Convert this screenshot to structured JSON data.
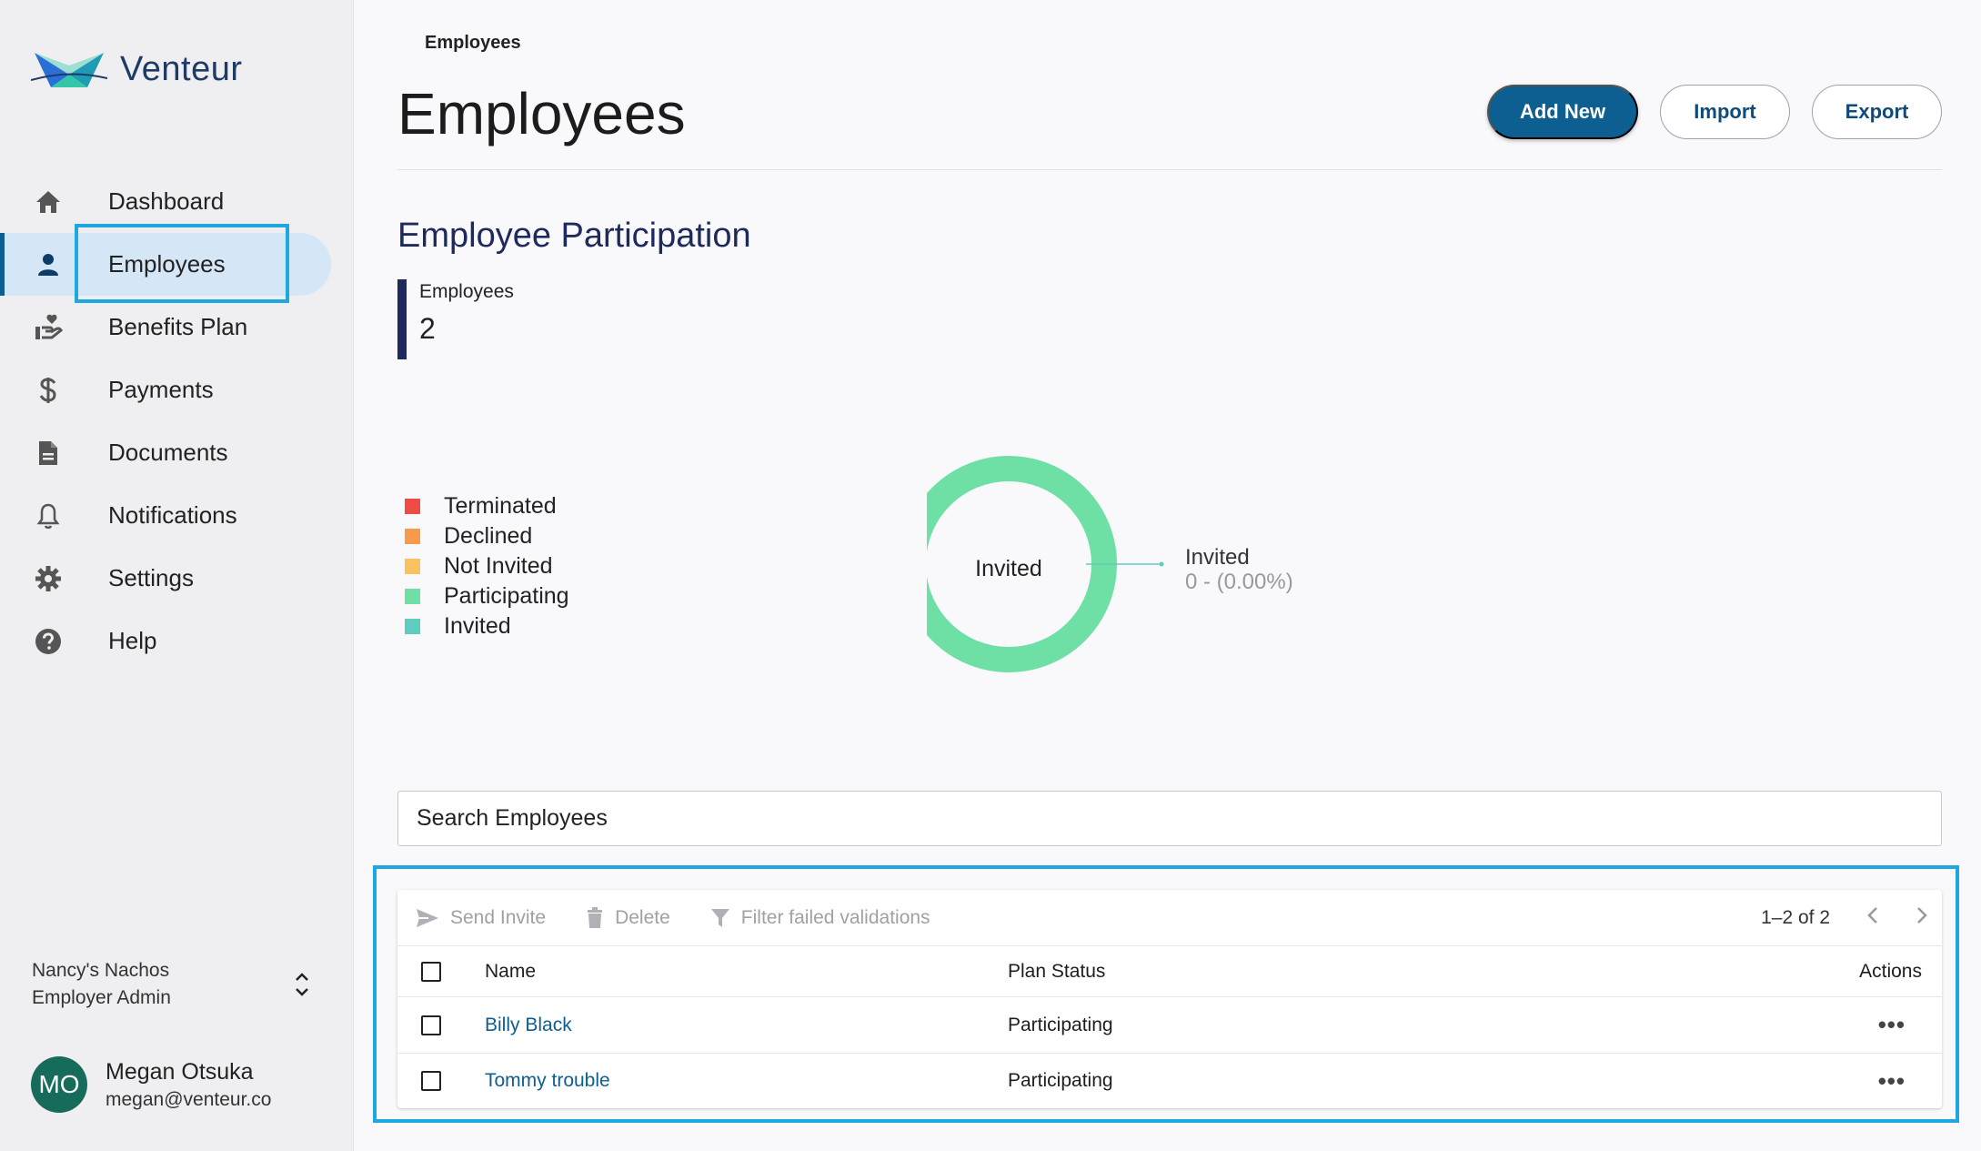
{
  "brand": {
    "name": "Venteur"
  },
  "sidebar": {
    "items": [
      {
        "label": "Dashboard"
      },
      {
        "label": "Employees"
      },
      {
        "label": "Benefits Plan"
      },
      {
        "label": "Payments"
      },
      {
        "label": "Documents"
      },
      {
        "label": "Notifications"
      },
      {
        "label": "Settings"
      },
      {
        "label": "Help"
      }
    ],
    "active_index": 1,
    "org": {
      "name": "Nancy's Nachos",
      "role": "Employer Admin"
    },
    "user": {
      "initials": "MO",
      "name": "Megan Otsuka",
      "email": "megan@venteur.co"
    }
  },
  "header": {
    "breadcrumb": "Employees",
    "title": "Employees",
    "add_new_label": "Add New",
    "import_label": "Import",
    "export_label": "Export"
  },
  "participation": {
    "title": "Employee Participation",
    "stat_label": "Employees",
    "stat_value": "2",
    "legend": [
      {
        "label": "Terminated",
        "color": "#f04c45"
      },
      {
        "label": "Declined",
        "color": "#f79a4b"
      },
      {
        "label": "Not Invited",
        "color": "#f9c260"
      },
      {
        "label": "Participating",
        "color": "#6ee0a5"
      },
      {
        "label": "Invited",
        "color": "#5dcdc0"
      }
    ],
    "donut_center_label": "Invited",
    "callout_label": "Invited",
    "callout_value": "0 - (0.00%)"
  },
  "chart_data": {
    "type": "pie",
    "categories": [
      "Terminated",
      "Declined",
      "Not Invited",
      "Participating",
      "Invited"
    ],
    "values": [
      0,
      0,
      0,
      2,
      0
    ],
    "colors": [
      "#f04c45",
      "#f79a4b",
      "#f9c260",
      "#6ee0a5",
      "#5dcdc0"
    ],
    "title": "Employee Participation",
    "legend": "left"
  },
  "search": {
    "placeholder": "Search Employees"
  },
  "table": {
    "toolbar": {
      "send_invite": "Send Invite",
      "delete": "Delete",
      "filter": "Filter failed validations",
      "pagination": "1–2 of 2"
    },
    "columns": {
      "name": "Name",
      "status": "Plan Status",
      "actions": "Actions"
    },
    "rows": [
      {
        "name": "Billy Black",
        "status": "Participating"
      },
      {
        "name": "Tommy trouble",
        "status": "Participating"
      }
    ]
  },
  "colors": {
    "primary": "#0d5e91",
    "highlight": "#1ea7e1",
    "navy": "#1e2a5c"
  }
}
